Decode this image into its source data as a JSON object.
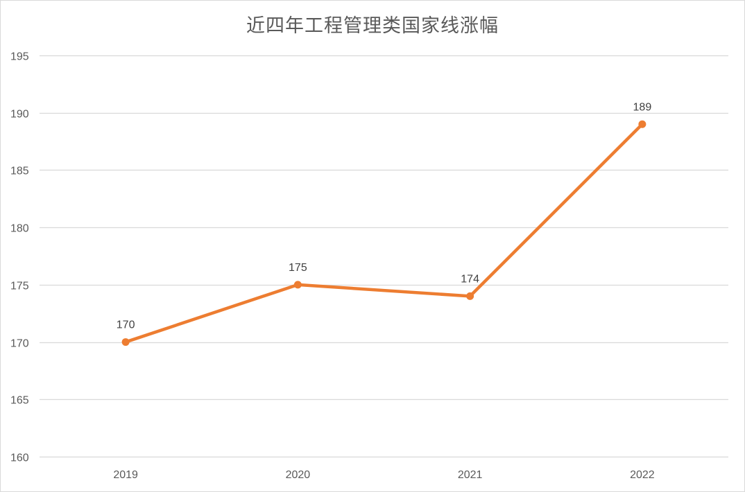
{
  "chart_data": {
    "type": "line",
    "title": "近四年工程管理类国家线涨幅",
    "xlabel": "",
    "ylabel": "",
    "categories": [
      "2019",
      "2020",
      "2021",
      "2022"
    ],
    "series": [
      {
        "values": [
          170,
          175,
          174,
          189
        ],
        "color": "#ED7D31"
      }
    ],
    "ylim": [
      160,
      195
    ],
    "yticks": [
      160,
      165,
      170,
      175,
      180,
      185,
      190,
      195
    ],
    "data_labels": true,
    "grid": true,
    "legend": "none",
    "gridline_color": "#d9d9d9"
  }
}
